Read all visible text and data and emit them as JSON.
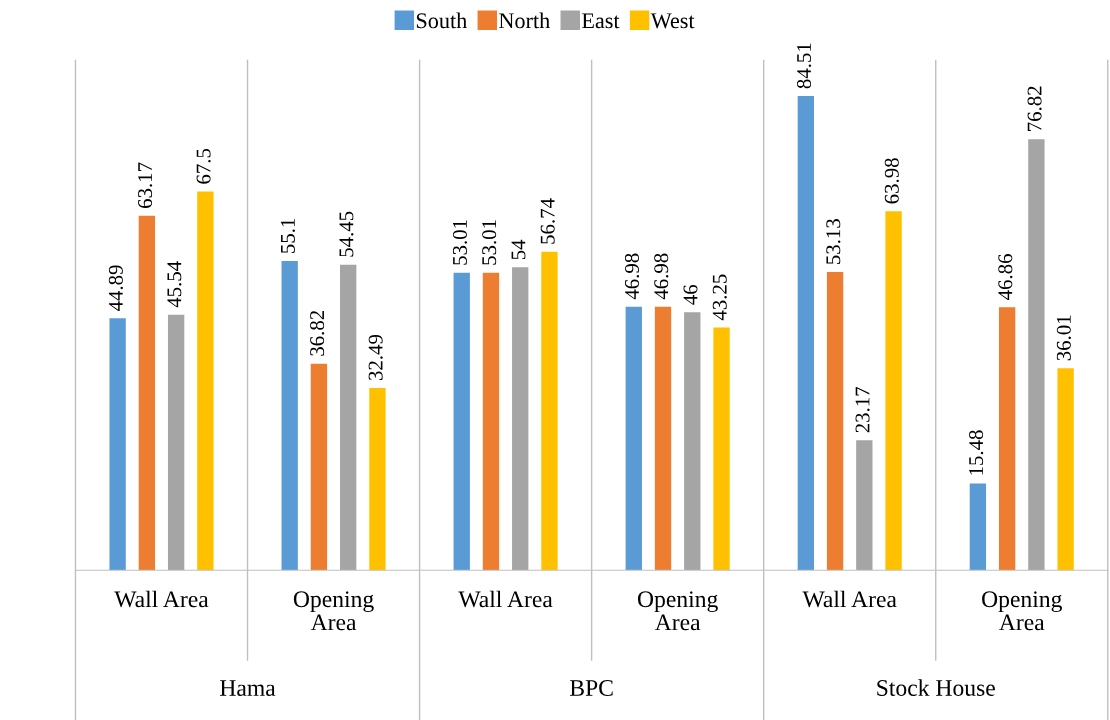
{
  "chart_data": {
    "type": "bar",
    "categories": [
      "Wall Area",
      "Opening Area",
      "Wall Area",
      "Opening Area",
      "Wall Area",
      "Opening Area"
    ],
    "annotations": [
      "Hama",
      "BPC",
      "Stock House"
    ],
    "series": [
      {
        "name": "South",
        "color": "#5b9bd5",
        "values": [
          44.89,
          55.1,
          53.01,
          46.98,
          84.51,
          15.48
        ]
      },
      {
        "name": "North",
        "color": "#ed7d31",
        "values": [
          63.17,
          36.82,
          53.01,
          46.98,
          53.13,
          46.86
        ]
      },
      {
        "name": "East",
        "color": "#a5a5a5",
        "values": [
          45.54,
          54.45,
          54,
          46,
          23.17,
          76.82
        ]
      },
      {
        "name": "West",
        "color": "#ffc000",
        "values": [
          67.5,
          32.49,
          56.74,
          43.25,
          63.98,
          36.01
        ]
      }
    ],
    "data_labels": true,
    "legend": "top"
  }
}
